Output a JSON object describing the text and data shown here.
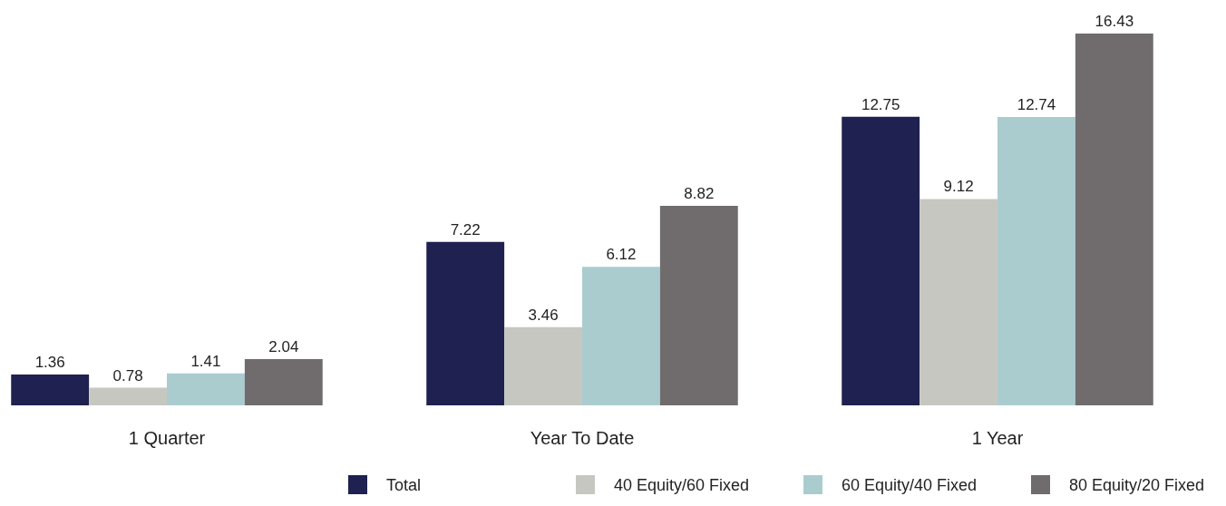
{
  "chart_data": {
    "type": "bar",
    "categories": [
      "1 Quarter",
      "Year To Date",
      "1 Year"
    ],
    "series": [
      {
        "name": "Total",
        "color": "#1f2150",
        "values": [
          1.36,
          7.22,
          12.75
        ]
      },
      {
        "name": "40 Equity/60 Fixed",
        "color": "#c7c7c2",
        "values": [
          0.78,
          3.46,
          9.12
        ]
      },
      {
        "name": "60 Equity/40 Fixed",
        "color": "#abcccf",
        "values": [
          1.41,
          6.12,
          12.74
        ]
      },
      {
        "name": "80 Equity/20 Fixed",
        "color": "#706c6e",
        "values": [
          2.04,
          8.82,
          16.43
        ]
      }
    ],
    "data_labels": true,
    "legend": "bottom",
    "grid": false
  }
}
